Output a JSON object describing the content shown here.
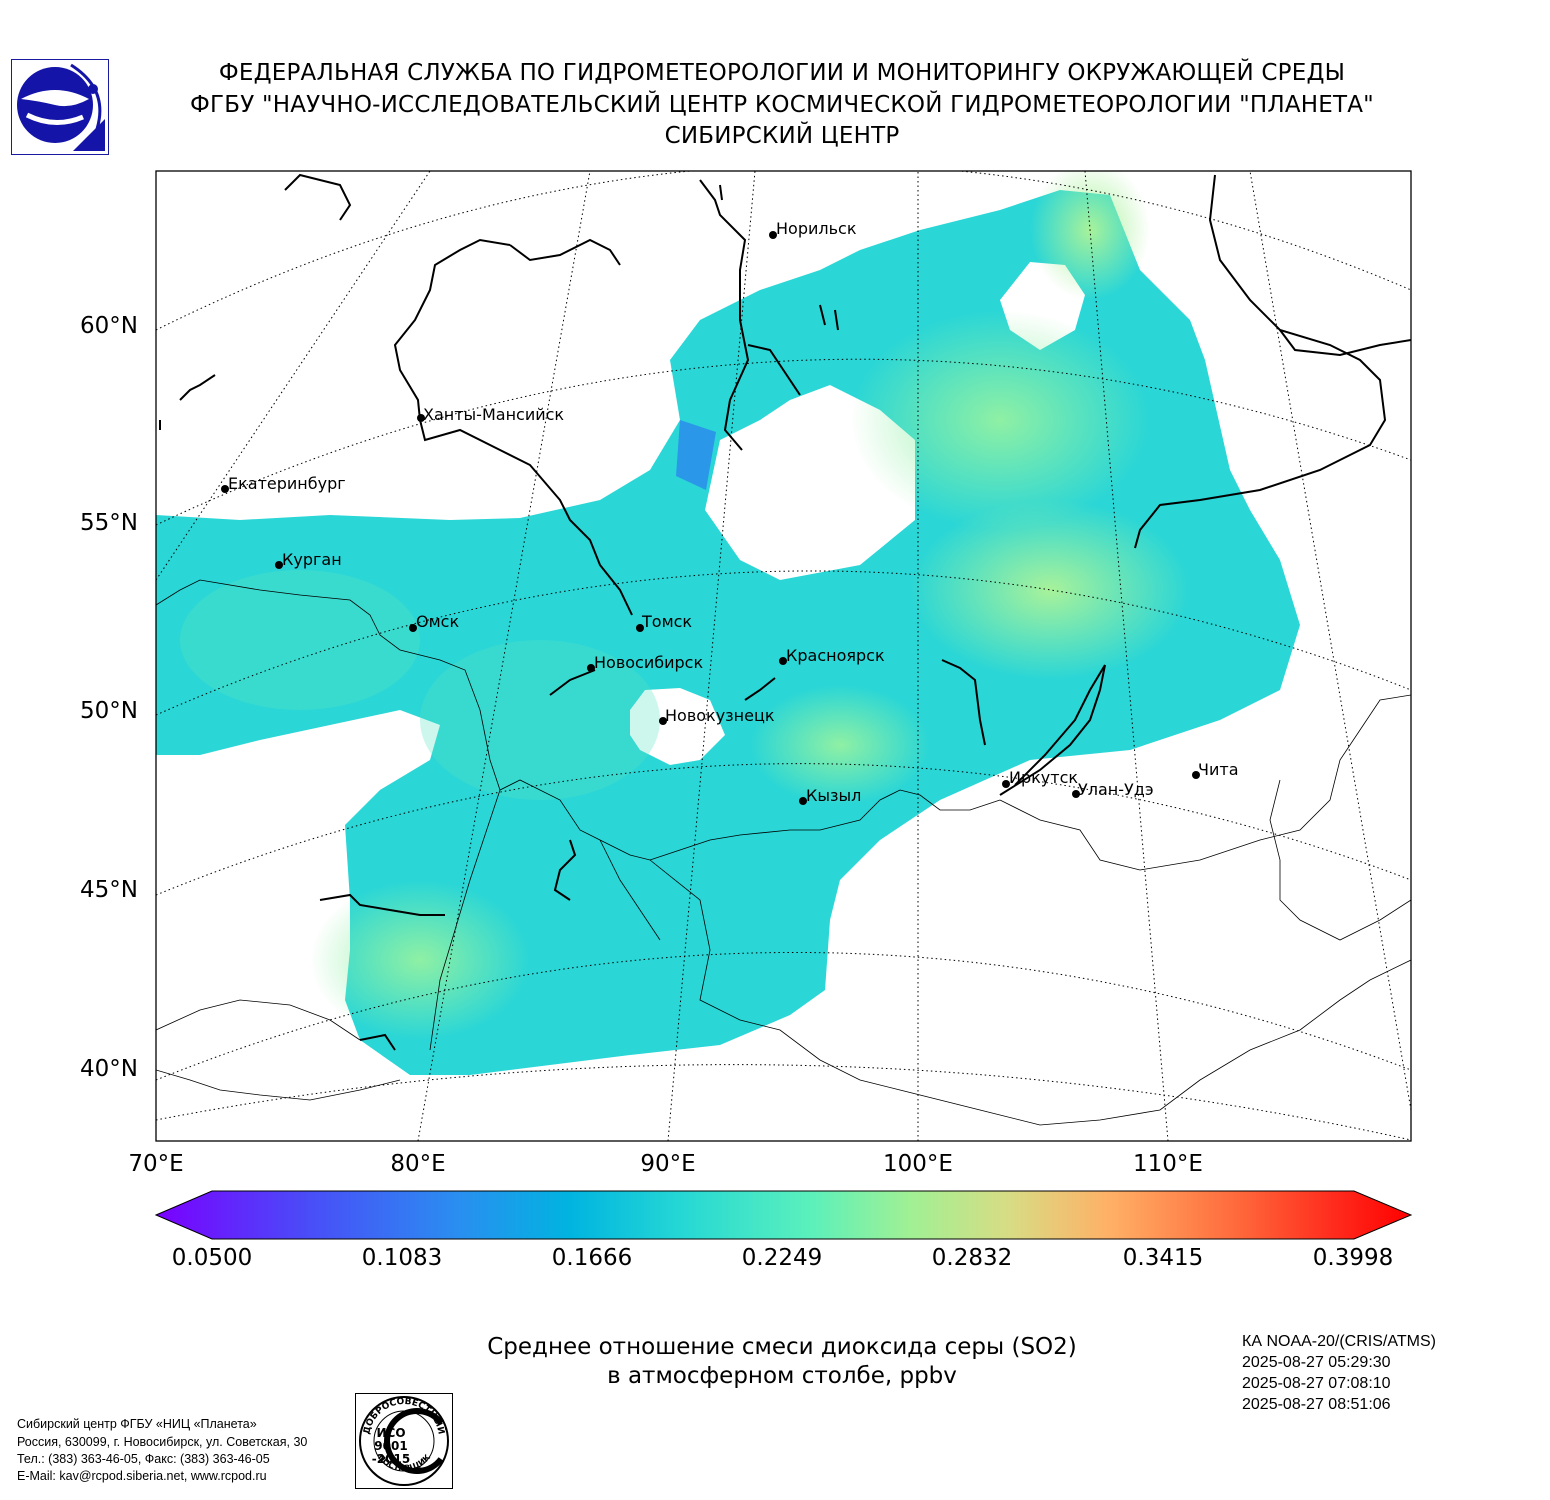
{
  "header": {
    "line1": "ФЕДЕРАЛЬНАЯ СЛУЖБА ПО ГИДРОМЕТЕОРОЛОГИИ И МОНИТОРИНГУ ОКРУЖАЮЩЕЙ СРЕДЫ",
    "line2": "ФГБУ \"НАУЧНО-ИССЛЕДОВАТЕЛЬСКИЙ ЦЕНТР КОСМИЧЕСКОЙ ГИДРОМЕТЕОРОЛОГИИ \"ПЛАНЕТА\"",
    "line3": "СИБИРСКИЙ ЦЕНТР"
  },
  "logo_icon": "planeta-logo-icon",
  "map": {
    "lon_labels": [
      "70°E",
      "80°E",
      "90°E",
      "100°E",
      "110°E"
    ],
    "lat_labels": [
      "60°N",
      "55°N",
      "50°N",
      "45°N",
      "40°N"
    ],
    "cities": [
      "Норильск",
      "Ханты-Мансийск",
      "Екатеринбург",
      "Курган",
      "Омск",
      "Томск",
      "Новосибирск",
      "Красноярск",
      "Новокузнецк",
      "Иркутск",
      "Кызыл",
      "Улан-Удэ",
      "Чита"
    ]
  },
  "colorbar": {
    "ticks": [
      "0.0500",
      "0.1083",
      "0.1666",
      "0.2249",
      "0.2832",
      "0.3415",
      "0.3998"
    ],
    "colors": [
      "#7a00ff",
      "#3a6cf4",
      "#00b4e0",
      "#40e8c0",
      "#a0f090",
      "#e0d080",
      "#ffa060",
      "#ff3a20",
      "#ff0000"
    ]
  },
  "chart_title": {
    "line1": "Среднее отношение смеси диоксида серы (SO2)",
    "line2": "в атмосферном столбе, ppbv"
  },
  "satellite": {
    "name": "КА NOAA-20/(CRIS/ATMS)",
    "times": [
      "2025-08-27 05:29:30",
      "2025-08-27 07:08:10",
      "2025-08-27 08:51:06"
    ]
  },
  "footer": {
    "line1": "Сибирский центр ФГБУ «НИЦ «Планета»",
    "line2": "Россия, 630099, г. Новосибирск, ул. Советская, 30",
    "line3": "Тел.: (383) 363-46-05, Факс: (383) 363-46-05",
    "line4": "E-Mail: kav@rcpod.siberia.net, www.rcpod.ru"
  },
  "iso_badge": {
    "top_text": "ДОБРОСОВЕСТНЫЙ",
    "line1": "ИСО",
    "line2": "9001",
    "line3": "-2015",
    "bottom_text": "ПОСТАВЩИК"
  }
}
